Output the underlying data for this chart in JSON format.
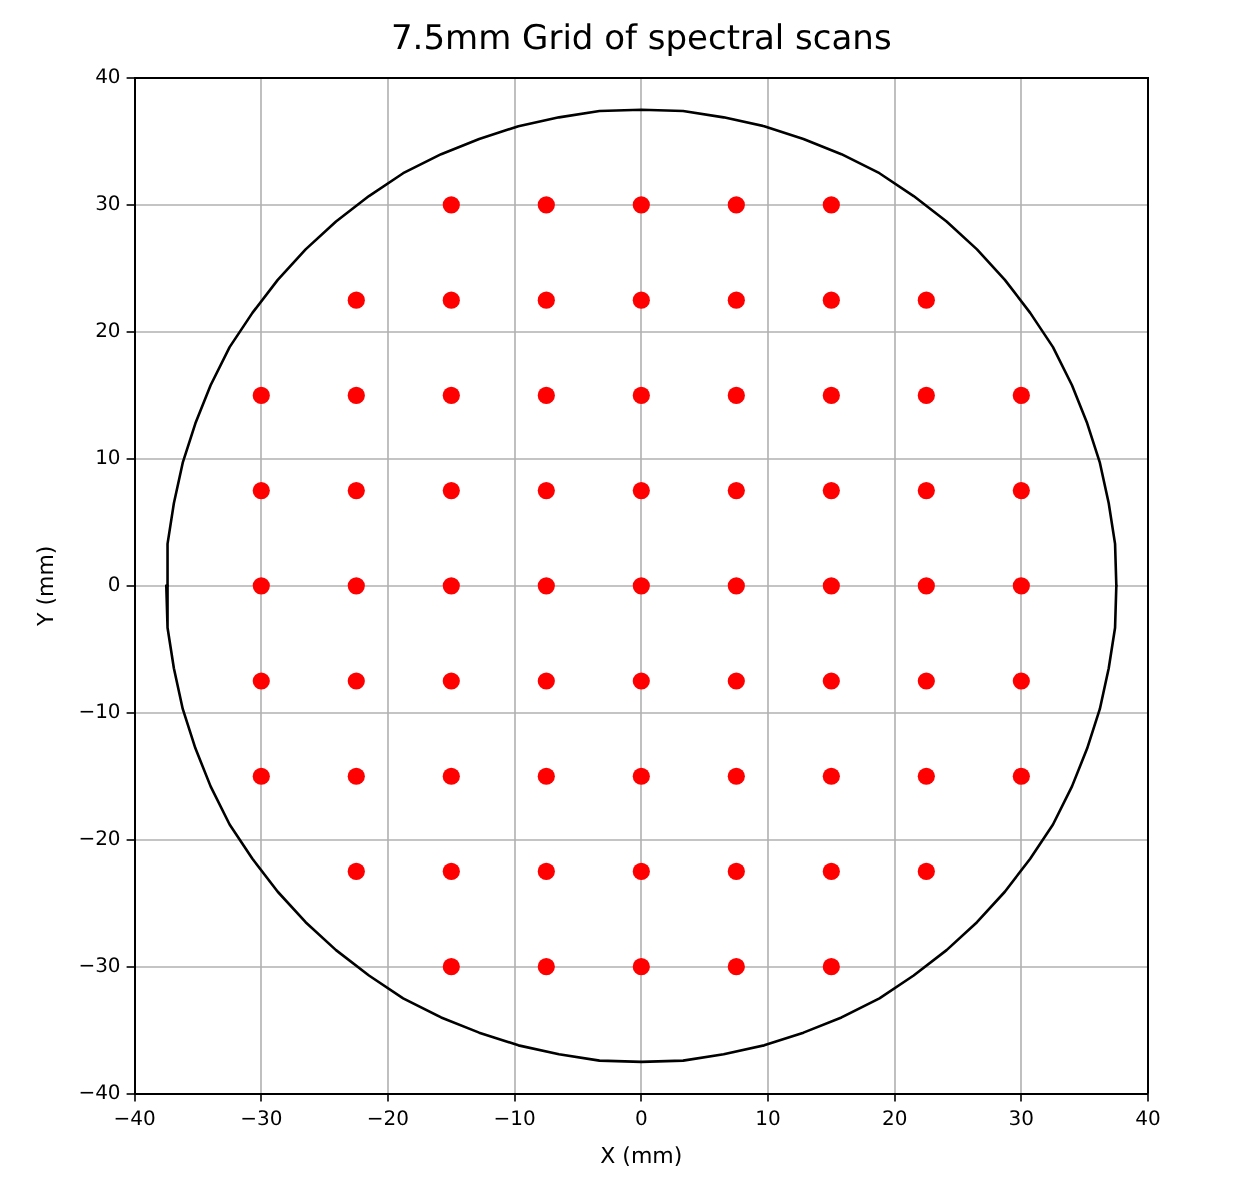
{
  "chart_data": {
    "type": "scatter",
    "title": "7.5mm Grid of spectral scans",
    "xlabel": "X (mm)",
    "ylabel": "Y (mm)",
    "xlim": [
      -40,
      40
    ],
    "ylim": [
      -40,
      40
    ],
    "xticks": [
      -40,
      -30,
      -20,
      -10,
      0,
      10,
      20,
      30,
      40
    ],
    "yticks": [
      -40,
      -30,
      -20,
      -10,
      0,
      10,
      20,
      30,
      40
    ],
    "grid": true,
    "series": [
      {
        "type": "scatter",
        "color": "#ff0000",
        "marker": "circle",
        "x": [
          -15,
          -7.5,
          0,
          7.5,
          15,
          -22.5,
          -15,
          -7.5,
          0,
          7.5,
          15,
          22.5,
          -30,
          -22.5,
          -15,
          -7.5,
          0,
          7.5,
          15,
          22.5,
          30,
          -30,
          -22.5,
          -15,
          -7.5,
          0,
          7.5,
          15,
          22.5,
          30,
          -30,
          -22.5,
          -15,
          -7.5,
          0,
          7.5,
          15,
          22.5,
          30,
          -30,
          -22.5,
          -15,
          -7.5,
          0,
          7.5,
          15,
          22.5,
          30,
          -30,
          -22.5,
          -15,
          -7.5,
          0,
          7.5,
          15,
          22.5,
          30,
          -22.5,
          -15,
          -7.5,
          0,
          7.5,
          15,
          22.5,
          -15,
          -7.5,
          0,
          7.5,
          15
        ],
        "values": [
          30,
          30,
          30,
          30,
          30,
          22.5,
          22.5,
          22.5,
          22.5,
          22.5,
          22.5,
          22.5,
          15,
          15,
          15,
          15,
          15,
          15,
          15,
          15,
          15,
          7.5,
          7.5,
          7.5,
          7.5,
          7.5,
          7.5,
          7.5,
          7.5,
          7.5,
          0,
          0,
          0,
          0,
          0,
          0,
          0,
          0,
          0,
          -7.5,
          -7.5,
          -7.5,
          -7.5,
          -7.5,
          -7.5,
          -7.5,
          -7.5,
          -7.5,
          -15,
          -15,
          -15,
          -15,
          -15,
          -15,
          -15,
          -15,
          -15,
          -22.5,
          -22.5,
          -22.5,
          -22.5,
          -22.5,
          -22.5,
          -22.5,
          -30,
          -30,
          -30,
          -30,
          -30
        ]
      },
      {
        "type": "line",
        "color": "#000000",
        "marker": "none",
        "x": [
          -37.5,
          -37.4,
          -36.9,
          -36.2,
          -35.2,
          -34.0,
          -32.5,
          -30.7,
          -28.7,
          -26.5,
          -24.1,
          -21.5,
          -18.8,
          -15.8,
          -12.8,
          -9.7,
          -6.5,
          -3.3,
          0,
          3.3,
          6.5,
          9.7,
          12.8,
          15.8,
          18.8,
          21.5,
          24.1,
          26.5,
          28.7,
          30.7,
          32.5,
          34.0,
          35.2,
          36.2,
          36.9,
          37.4,
          37.5,
          null,
          -37.5,
          -37.4,
          -36.9,
          -36.2,
          -35.2,
          -34.0,
          -32.5,
          -30.7,
          -28.7,
          -26.5,
          -24.1,
          -21.5,
          -18.8,
          -15.8,
          -12.8,
          -9.7,
          -6.5,
          -3.3,
          0,
          3.3,
          6.5,
          9.7,
          12.8,
          15.8,
          18.8,
          21.5,
          24.1,
          26.5,
          28.7,
          30.7,
          32.5,
          34.0,
          35.2,
          36.2,
          36.9,
          37.4,
          37.5
        ],
        "values": [
          0,
          3.3,
          6.5,
          9.7,
          12.8,
          15.8,
          18.8,
          21.5,
          24.1,
          26.5,
          28.7,
          30.7,
          32.5,
          34.0,
          35.2,
          36.2,
          36.9,
          37.4,
          37.5,
          37.4,
          36.9,
          36.2,
          35.2,
          34.0,
          32.5,
          30.7,
          28.7,
          26.5,
          24.1,
          21.5,
          18.8,
          15.8,
          12.8,
          9.7,
          6.5,
          3.3,
          0,
          null,
          0,
          -3.3,
          -6.5,
          -9.7,
          -12.8,
          -15.8,
          -18.8,
          -21.5,
          -24.1,
          -26.5,
          -28.7,
          -30.7,
          -32.5,
          -34.0,
          -35.2,
          -36.2,
          -36.9,
          -37.4,
          -37.5,
          -37.4,
          -36.9,
          -36.2,
          -35.2,
          -34.0,
          -32.5,
          -30.7,
          -28.7,
          -26.5,
          -24.1,
          -21.5,
          -18.8,
          -15.8,
          -12.8,
          -9.7,
          -6.5,
          -3.3,
          0
        ]
      }
    ]
  }
}
